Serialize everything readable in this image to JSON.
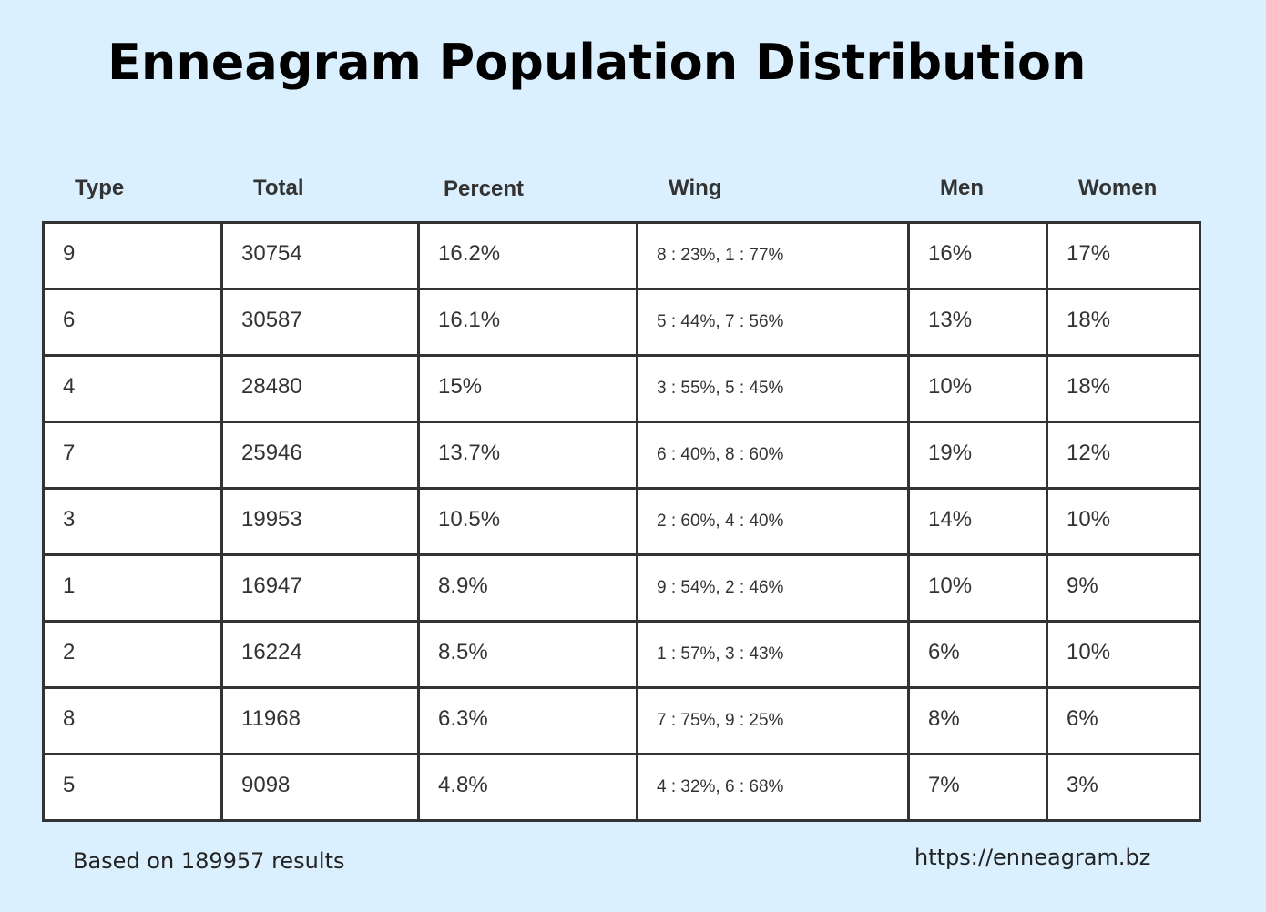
{
  "title": "Enneagram Population Distribution",
  "colors": {
    "background": "#dbf0fe",
    "cell_background": "#ffffff",
    "grid_line": "#333333",
    "text": "#333333"
  },
  "chart_data": {
    "type": "table",
    "title": "Enneagram Population Distribution",
    "columns": [
      "Type",
      "Total",
      "Percent",
      "Wing",
      "Men",
      "Women"
    ],
    "rows": [
      [
        "9",
        "30754",
        "16.2%",
        "8 : 23%, 1 : 77%",
        "16%",
        "17%"
      ],
      [
        "6",
        "30587",
        "16.1%",
        "5 : 44%, 7 : 56%",
        "13%",
        "18%"
      ],
      [
        "4",
        "28480",
        "15%",
        "3 : 55%, 5 : 45%",
        "10%",
        "18%"
      ],
      [
        "7",
        "25946",
        "13.7%",
        "6 : 40%, 8 : 60%",
        "19%",
        "12%"
      ],
      [
        "3",
        "19953",
        "10.5%",
        "2 : 60%, 4 : 40%",
        "14%",
        "10%"
      ],
      [
        "1",
        "16947",
        "8.9%",
        "9 : 54%, 2 : 46%",
        "10%",
        "9%"
      ],
      [
        "2",
        "16224",
        "8.5%",
        "1 : 57%, 3 : 43%",
        "6%",
        "10%"
      ],
      [
        "8",
        "11968",
        "6.3%",
        "7 : 75%, 9 : 25%",
        "8%",
        "6%"
      ],
      [
        "5",
        "9098",
        "4.8%",
        "4 : 32%, 6 : 68%",
        "7%",
        "3%"
      ]
    ]
  },
  "footer": {
    "note": "Based on 189957 results",
    "source": "https://enneagram.bz"
  }
}
